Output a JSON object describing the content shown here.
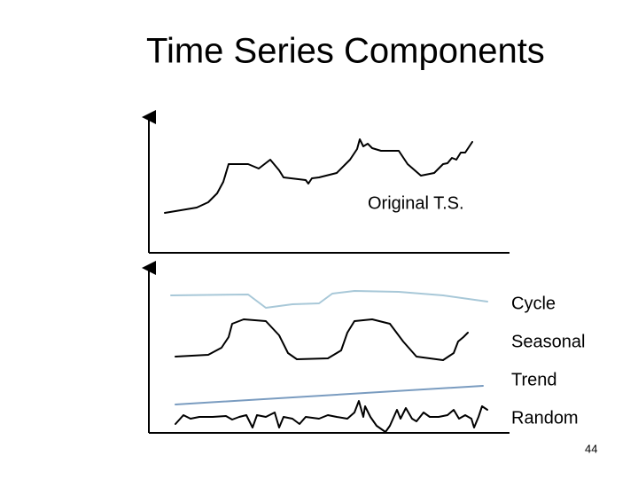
{
  "title": "Time Series Components",
  "top_panel": {
    "label": "Original T.S."
  },
  "bottom_panel": {
    "labels": [
      "Cycle",
      "Seasonal",
      "Trend",
      "Random"
    ]
  },
  "page_number": "44"
}
